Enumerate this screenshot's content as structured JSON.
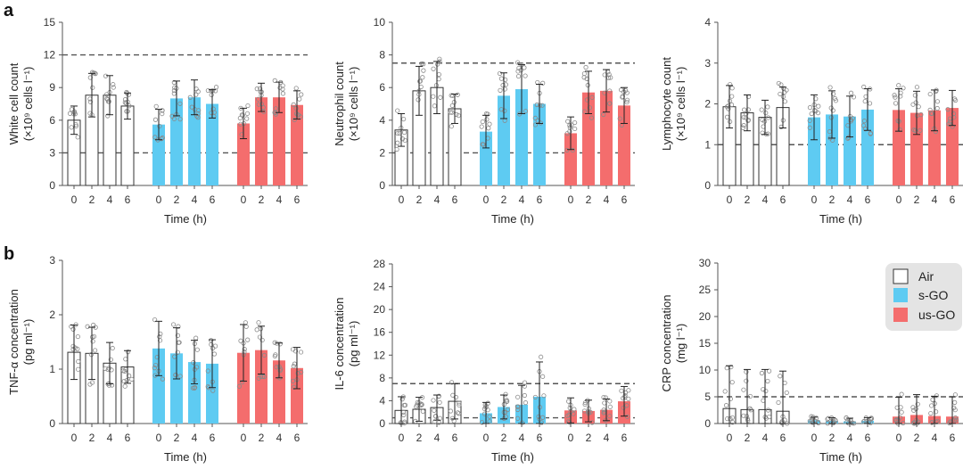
{
  "figure": {
    "panel_labels": [
      "a",
      "b"
    ],
    "colors": {
      "air": "#ffffff",
      "air_edge": "#333333",
      "sgo": "#5ecbf2",
      "usgo": "#f46d6d",
      "legend_bg": "#e4e4e4",
      "ref_line": "#555555",
      "points": "#8a8a8a"
    }
  },
  "legend": {
    "items": [
      {
        "label": "Air",
        "color": "#ffffff"
      },
      {
        "label": "s-GO",
        "color": "#5ecbf2"
      },
      {
        "label": "us-GO",
        "color": "#f46d6d"
      }
    ]
  },
  "chart_data": [
    {
      "type": "bar",
      "panel": "a",
      "title": "",
      "ylabel_line1": "White cell count",
      "ylabel_line2": "(×10⁹ cells l⁻¹)",
      "xlabel": "Time (h)",
      "ylim": [
        0,
        15
      ],
      "yticks": [
        0,
        3,
        6,
        9,
        12,
        15
      ],
      "categories": [
        "0",
        "2",
        "4",
        "6"
      ],
      "reference_lines": [
        3,
        12
      ],
      "series": [
        {
          "name": "Air",
          "values": [
            6.0,
            8.3,
            8.3,
            7.3
          ],
          "err": [
            1.3,
            2.0,
            1.8,
            1.2
          ]
        },
        {
          "name": "s-GO",
          "values": [
            5.6,
            8.0,
            8.1,
            7.5
          ],
          "err": [
            1.4,
            1.6,
            1.6,
            1.3
          ]
        },
        {
          "name": "us-GO",
          "values": [
            5.7,
            8.1,
            8.1,
            7.4
          ],
          "err": [
            1.4,
            1.3,
            1.4,
            1.3
          ]
        }
      ]
    },
    {
      "type": "bar",
      "panel": "a",
      "title": "",
      "ylabel_line1": "Neutrophil count",
      "ylabel_line2": "(×10⁹ cells l⁻¹)",
      "xlabel": "Time (h)",
      "ylim": [
        0,
        10
      ],
      "yticks": [
        0,
        2,
        4,
        6,
        8,
        10
      ],
      "categories": [
        "0",
        "2",
        "4",
        "6"
      ],
      "reference_lines": [
        2,
        7.5
      ],
      "series": [
        {
          "name": "Air",
          "values": [
            3.4,
            5.8,
            6.0,
            4.7
          ],
          "err": [
            1.0,
            1.5,
            1.6,
            0.9
          ]
        },
        {
          "name": "s-GO",
          "values": [
            3.3,
            5.5,
            5.9,
            5.0
          ],
          "err": [
            1.0,
            1.4,
            1.5,
            1.2
          ]
        },
        {
          "name": "us-GO",
          "values": [
            3.2,
            5.7,
            5.8,
            4.9
          ],
          "err": [
            1.0,
            1.3,
            1.3,
            1.1
          ]
        }
      ]
    },
    {
      "type": "bar",
      "panel": "a",
      "title": "",
      "ylabel_line1": "Lymphocyte count",
      "ylabel_line2": "(×10⁹ cells l⁻¹)",
      "xlabel": "Time (h)",
      "ylim": [
        0,
        4
      ],
      "yticks": [
        0,
        1,
        2,
        3,
        4
      ],
      "categories": [
        "0",
        "2",
        "4",
        "6"
      ],
      "reference_lines": [
        1
      ],
      "series": [
        {
          "name": "Air",
          "values": [
            1.93,
            1.78,
            1.67,
            1.91
          ],
          "err": [
            0.52,
            0.44,
            0.42,
            0.5
          ]
        },
        {
          "name": "s-GO",
          "values": [
            1.67,
            1.74,
            1.69,
            1.86
          ],
          "err": [
            0.55,
            0.58,
            0.5,
            0.51
          ]
        },
        {
          "name": "us-GO",
          "values": [
            1.85,
            1.78,
            1.84,
            1.9
          ],
          "err": [
            0.52,
            0.53,
            0.5,
            0.43
          ]
        }
      ]
    },
    {
      "type": "bar",
      "panel": "b",
      "title": "",
      "ylabel_line1": "TNF-α concentration",
      "ylabel_line2": "(pg ml⁻¹)",
      "xlabel": "Time (h)",
      "ylim": [
        0,
        3
      ],
      "yticks": [
        0,
        1,
        2,
        3
      ],
      "categories": [
        "0",
        "2",
        "4",
        "6"
      ],
      "reference_lines": [],
      "series": [
        {
          "name": "Air",
          "values": [
            1.31,
            1.29,
            1.11,
            1.04
          ],
          "err": [
            0.5,
            0.48,
            0.38,
            0.3
          ]
        },
        {
          "name": "s-GO",
          "values": [
            1.38,
            1.29,
            1.13,
            1.1
          ],
          "err": [
            0.5,
            0.47,
            0.4,
            0.44
          ]
        },
        {
          "name": "us-GO",
          "values": [
            1.3,
            1.35,
            1.16,
            1.02
          ],
          "err": [
            0.52,
            0.44,
            0.32,
            0.38
          ]
        }
      ]
    },
    {
      "type": "bar",
      "panel": "b",
      "title": "",
      "ylabel_line1": "IL-6 concentration",
      "ylabel_line2": "(pg ml⁻¹)",
      "xlabel": "Time (h)",
      "ylim": [
        0,
        28
      ],
      "yticks": [
        0,
        4,
        8,
        12,
        16,
        20,
        24,
        28
      ],
      "categories": [
        "0",
        "2",
        "4",
        "6"
      ],
      "reference_lines": [
        1,
        7
      ],
      "series": [
        {
          "name": "Air",
          "values": [
            2.3,
            2.5,
            2.8,
            3.9
          ],
          "err": [
            2.4,
            2.1,
            2.2,
            3.1
          ]
        },
        {
          "name": "s-GO",
          "values": [
            1.8,
            2.9,
            3.3,
            4.7
          ],
          "err": [
            1.9,
            2.1,
            3.4,
            6.1
          ]
        },
        {
          "name": "us-GO",
          "values": [
            2.3,
            2.2,
            2.4,
            3.9
          ],
          "err": [
            2.2,
            1.9,
            1.9,
            2.6
          ]
        }
      ]
    },
    {
      "type": "bar",
      "panel": "b",
      "title": "",
      "ylabel_line1": "CRP concentration",
      "ylabel_line2": "(mg l⁻¹)",
      "xlabel": "Time (h)",
      "ylim": [
        0,
        30
      ],
      "yticks": [
        0,
        5,
        10,
        15,
        20,
        25,
        30
      ],
      "categories": [
        "0",
        "2",
        "4",
        "6"
      ],
      "reference_lines": [
        5
      ],
      "series": [
        {
          "name": "Air",
          "values": [
            2.8,
            2.6,
            2.6,
            2.3
          ],
          "err": [
            8.0,
            7.5,
            7.5,
            7.5
          ]
        },
        {
          "name": "s-GO",
          "values": [
            0.6,
            0.5,
            0.4,
            0.5
          ],
          "err": [
            0.6,
            0.6,
            0.6,
            0.6
          ]
        },
        {
          "name": "us-GO",
          "values": [
            1.3,
            1.6,
            1.4,
            1.3
          ],
          "err": [
            3.6,
            3.8,
            3.7,
            3.7
          ]
        }
      ]
    }
  ]
}
